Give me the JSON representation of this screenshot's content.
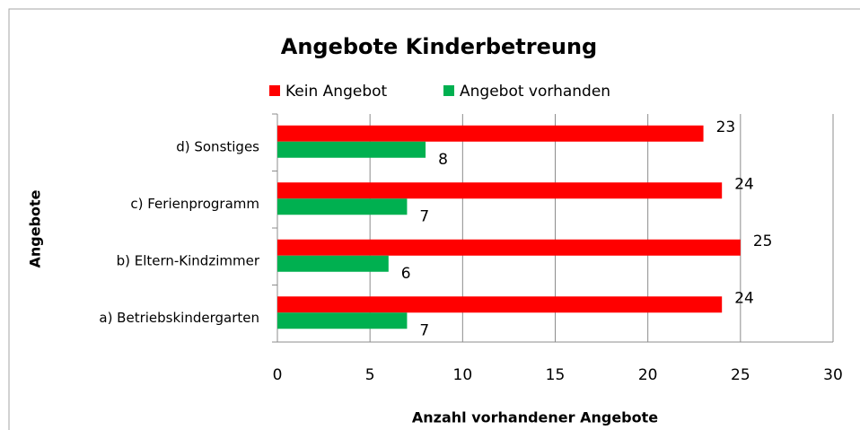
{
  "chart_data": {
    "type": "bar",
    "orientation": "horizontal",
    "title": "Angebote Kinderbetreung",
    "x_label": "Anzahl vorhandener Angebote",
    "y_label": "Angebote",
    "categories": [
      "a) Betriebskindergarten",
      "b) Eltern-Kindzimmer",
      "c) Ferienprogramm",
      "d) Sonstiges"
    ],
    "series": [
      {
        "name": "Kein Angebot",
        "color": "#ff0000",
        "values": [
          24,
          25,
          24,
          23
        ]
      },
      {
        "name": "Angebot vorhanden",
        "color": "#00b050",
        "values": [
          7,
          6,
          7,
          8
        ]
      }
    ],
    "xlim": [
      0,
      30
    ],
    "xticks": [
      0,
      5,
      10,
      15,
      20,
      25,
      30
    ],
    "grid": true,
    "legend": "top"
  }
}
